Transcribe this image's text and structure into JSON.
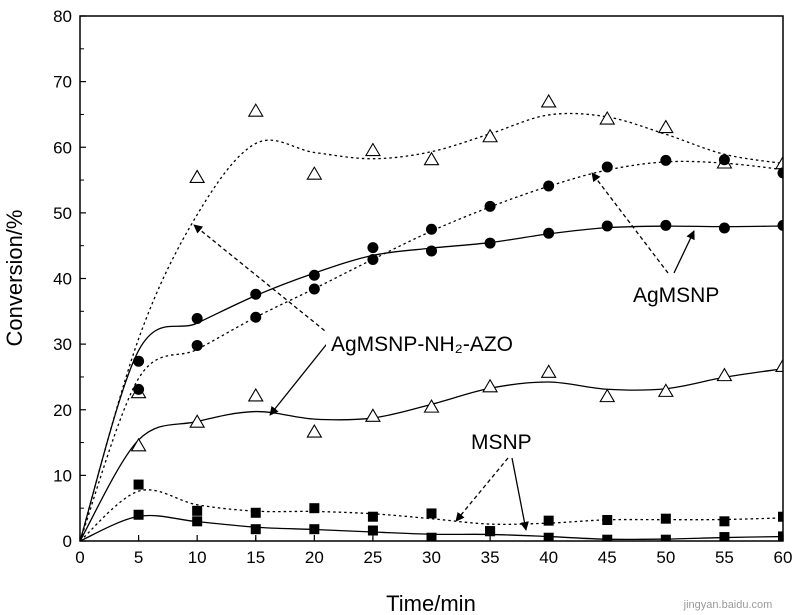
{
  "chart_data": {
    "type": "scatter",
    "xlabel": "Time/min",
    "ylabel": "Conversion/%",
    "xlim": [
      0,
      60
    ],
    "ylim": [
      0,
      80
    ],
    "xticks": [
      0,
      5,
      10,
      15,
      20,
      25,
      30,
      35,
      40,
      45,
      50,
      55,
      60
    ],
    "yticks": [
      0,
      10,
      20,
      30,
      40,
      50,
      60,
      70,
      80
    ],
    "grid": false,
    "series": [
      {
        "marker": "triangle-open",
        "fit": "dotted",
        "x": [
          5,
          10,
          15,
          20,
          25,
          30,
          35,
          40,
          45,
          50,
          55,
          60
        ],
        "y": [
          22.6,
          55.4,
          65.5,
          55.9,
          59.5,
          58.1,
          61.6,
          66.9,
          64.3,
          63.0,
          57.6,
          57.5
        ]
      },
      {
        "marker": "circle-filled",
        "fit": "dotted",
        "x": [
          5,
          10,
          15,
          20,
          25,
          30,
          35,
          40,
          45,
          50,
          55,
          60
        ],
        "y": [
          23.1,
          29.8,
          34.1,
          38.4,
          42.9,
          47.5,
          51.0,
          54.1,
          57.0,
          58.0,
          58.1,
          56.1
        ]
      },
      {
        "marker": "circle-filled",
        "fit": "solid",
        "x": [
          5,
          10,
          15,
          20,
          25,
          30,
          35,
          40,
          45,
          50,
          55,
          60
        ],
        "y": [
          27.4,
          33.9,
          37.6,
          40.5,
          44.7,
          44.2,
          45.4,
          46.9,
          48.0,
          48.1,
          47.7,
          48.1
        ]
      },
      {
        "marker": "triangle-open",
        "fit": "solid",
        "x": [
          5,
          10,
          15,
          20,
          25,
          30,
          35,
          40,
          45,
          50,
          55,
          60
        ],
        "y": [
          14.5,
          18.1,
          22.1,
          16.6,
          19.0,
          20.4,
          23.5,
          25.7,
          22.0,
          22.8,
          25.2,
          26.6
        ]
      },
      {
        "marker": "square-filled",
        "fit": "dotted",
        "x": [
          5,
          10,
          15,
          20,
          25,
          30,
          35,
          40,
          45,
          50,
          55,
          60
        ],
        "y": [
          8.6,
          4.6,
          4.3,
          5.0,
          3.7,
          4.2,
          1.5,
          3.1,
          3.2,
          3.4,
          3.0,
          3.7
        ]
      },
      {
        "marker": "square-filled",
        "fit": "solid",
        "x": [
          5,
          10,
          15,
          20,
          25,
          30,
          35,
          40,
          45,
          50,
          55,
          60
        ],
        "y": [
          4.0,
          3.0,
          1.8,
          1.8,
          1.6,
          0.5,
          1.5,
          0.5,
          0.2,
          0.2,
          0.6,
          0.7
        ]
      }
    ],
    "annotations": [
      {
        "text": "AgMSNP-NH₂-AZO"
      },
      {
        "text": "AgMSNP"
      },
      {
        "text": "MSNP"
      }
    ],
    "watermark": "jingyan.baidu.com"
  }
}
